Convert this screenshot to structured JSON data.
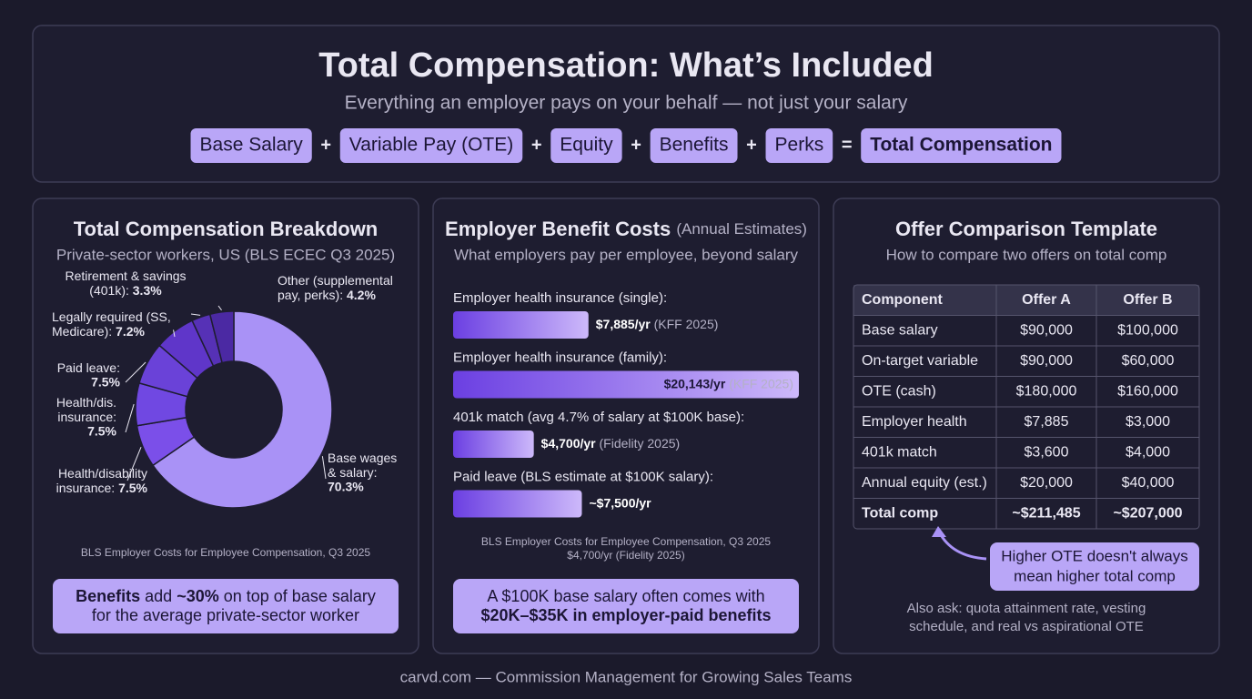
{
  "header": {
    "title": "Total Compensation: What’s Included",
    "subtitle": "Everything an employer pays on your behalf — not just your salary",
    "formula": [
      "Base Salary",
      "Variable Pay (OTE)",
      "Equity",
      "Benefits",
      "Perks",
      "Total Compensation"
    ],
    "operators": [
      "+",
      "+",
      "+",
      "+",
      "="
    ]
  },
  "chart_data": [
    {
      "type": "donut",
      "title": "Total Compensation Breakdown",
      "subtitle": "Private-sector workers, US (BLS ECEC Q3 2025)",
      "categories": [
        [
          "Base wages",
          "& salary:"
        ],
        [
          "Health/disability",
          "insurance:"
        ],
        [
          "Health/dis.",
          "insurance:"
        ],
        [
          "Paid leave:"
        ],
        [
          "Legally required (SS,",
          "Medicare):"
        ],
        [
          "Retirement & savings",
          "(401k):"
        ],
        [
          "Other (supplemental",
          "pay, perks):"
        ]
      ],
      "values": [
        70.3,
        7.5,
        7.5,
        7.5,
        7.2,
        3.3,
        4.2
      ],
      "value_labels": [
        "70.3%",
        "7.5%",
        "7.5%",
        "7.5%",
        "7.2%",
        "3.3%",
        "4.2%"
      ],
      "colors": [
        "#a992f6",
        "#7b4fe9",
        "#7048e2",
        "#6a42d8",
        "#5f36c9",
        "#5631b6",
        "#4b29a3"
      ],
      "source": "BLS Employer Costs for Employee Compensation, Q3 2025",
      "callout": [
        [
          {
            "text": "Benefits",
            "bold": true
          },
          {
            "text": " add "
          },
          {
            "text": "~30%",
            "bold": true
          },
          {
            "text": " on top of base salary"
          }
        ],
        [
          {
            "text": "for the average private-sector worker"
          }
        ]
      ]
    },
    {
      "type": "hbar",
      "title": "Employer Benefit Costs",
      "title_note": "(Annual Estimates)",
      "subtitle": "What employers pay per employee, beyond salary",
      "categories": [
        "Employer health insurance (single):",
        "Employer health insurance (family):",
        "401k match (avg 4.7% of salary at $100K base):",
        "Paid leave (BLS estimate at $100K salary):"
      ],
      "values": [
        7885,
        20143,
        4700,
        7500
      ],
      "value_labels": [
        "$7,885/yr",
        "$20,143/yr",
        "$4,700/yr",
        "~$7,500/yr"
      ],
      "sources": [
        "(KFF 2025)",
        "(KFF 2025)",
        "(Fidelity 2025)",
        null
      ],
      "color_start": "#6b3fe2",
      "color_end": "#cdb9fa",
      "footnote": [
        "BLS Employer Costs for Employee Compensation, Q3 2025",
        "$4,700/yr (Fidelity 2025)"
      ],
      "callout": [
        [
          {
            "text": "A $100K base salary often comes with"
          }
        ],
        [
          {
            "text": "$20K–$35K",
            "bold": true
          },
          {
            "text": " in employer-paid benefits",
            "bold": true
          }
        ]
      ]
    }
  ],
  "comparison": {
    "title": "Offer Comparison Template",
    "subtitle": "How to compare two offers on total comp",
    "table": {
      "header": [
        "Component",
        "Offer A",
        "Offer B"
      ],
      "rows": [
        [
          "Base salary",
          "$90,000",
          "$100,000"
        ],
        [
          "On-target variable",
          "$90,000",
          "$60,000"
        ],
        [
          "OTE (cash)",
          "$180,000",
          "$160,000"
        ],
        [
          "Employer health",
          "$7,885",
          "$3,000"
        ],
        [
          "401k match",
          "$3,600",
          "$4,000"
        ],
        [
          "Annual equity (est.)",
          "$20,000",
          "$40,000"
        ],
        [
          "Total comp",
          "~$211,485",
          "~$207,000"
        ]
      ]
    },
    "callout": [
      "Higher OTE doesn't always",
      "mean higher total comp"
    ],
    "note": [
      "Also ask: quota attainment rate, vesting",
      "schedule, and real vs aspirational OTE"
    ]
  },
  "footer": "carvd.com — Commission Management for Growing Sales Teams"
}
